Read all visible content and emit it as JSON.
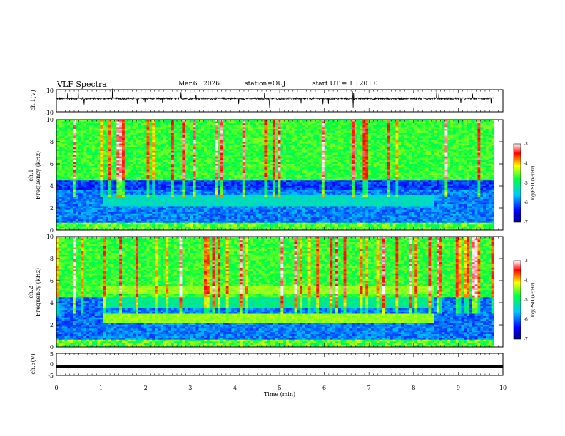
{
  "header": {
    "title": "VLF Spectra",
    "date": "Mar.6 , 2026",
    "station": "station=OUJ",
    "start": "start UT = 1 : 20 : 0"
  },
  "chart_data": [
    {
      "type": "line",
      "ylabel": "ch.1(V)",
      "ylim": [
        -10,
        10
      ],
      "yticks": [
        "10",
        "-10"
      ],
      "description_level": "waveform baseline near 2 V with noise spikes",
      "xlim": [
        0,
        10
      ]
    },
    {
      "type": "heatmap",
      "ylabel": "ch.1\nFrequency (kHz)",
      "ylabel_lines": [
        "ch.1",
        "Frequency (kHz)"
      ],
      "ylim": [
        0,
        10
      ],
      "yticks": [
        "0",
        "2",
        "4",
        "6",
        "8",
        "10"
      ],
      "xlim": [
        0,
        10
      ],
      "colorbar": {
        "label": "log(PSD)(V²/Hz)",
        "range": [
          -7,
          -3
        ],
        "ticks": [
          "-3",
          "-4",
          "-5",
          "-6",
          "-7"
        ]
      }
    },
    {
      "type": "heatmap",
      "ylabel_lines": [
        "ch.2",
        "Frequency (kHz)"
      ],
      "ylim": [
        0,
        10
      ],
      "yticks": [
        "0",
        "2",
        "4",
        "6",
        "8",
        "10"
      ],
      "xlim": [
        0,
        10
      ],
      "colorbar": {
        "label": "log(PSD)(V²/Hz)",
        "range": [
          -7,
          -3
        ],
        "ticks": [
          "-3",
          "-4",
          "-5",
          "-6",
          "-7"
        ]
      }
    },
    {
      "type": "line",
      "ylabel": "ch.3(V)",
      "ylim": [
        -5,
        5
      ],
      "yticks": [
        "5",
        "0",
        "-5"
      ],
      "level": -1,
      "xlim": [
        0,
        10
      ],
      "xlabel": "Time (min)",
      "xticks": [
        "0",
        "1",
        "2",
        "3",
        "4",
        "5",
        "6",
        "7",
        "8",
        "9",
        "10"
      ]
    }
  ]
}
